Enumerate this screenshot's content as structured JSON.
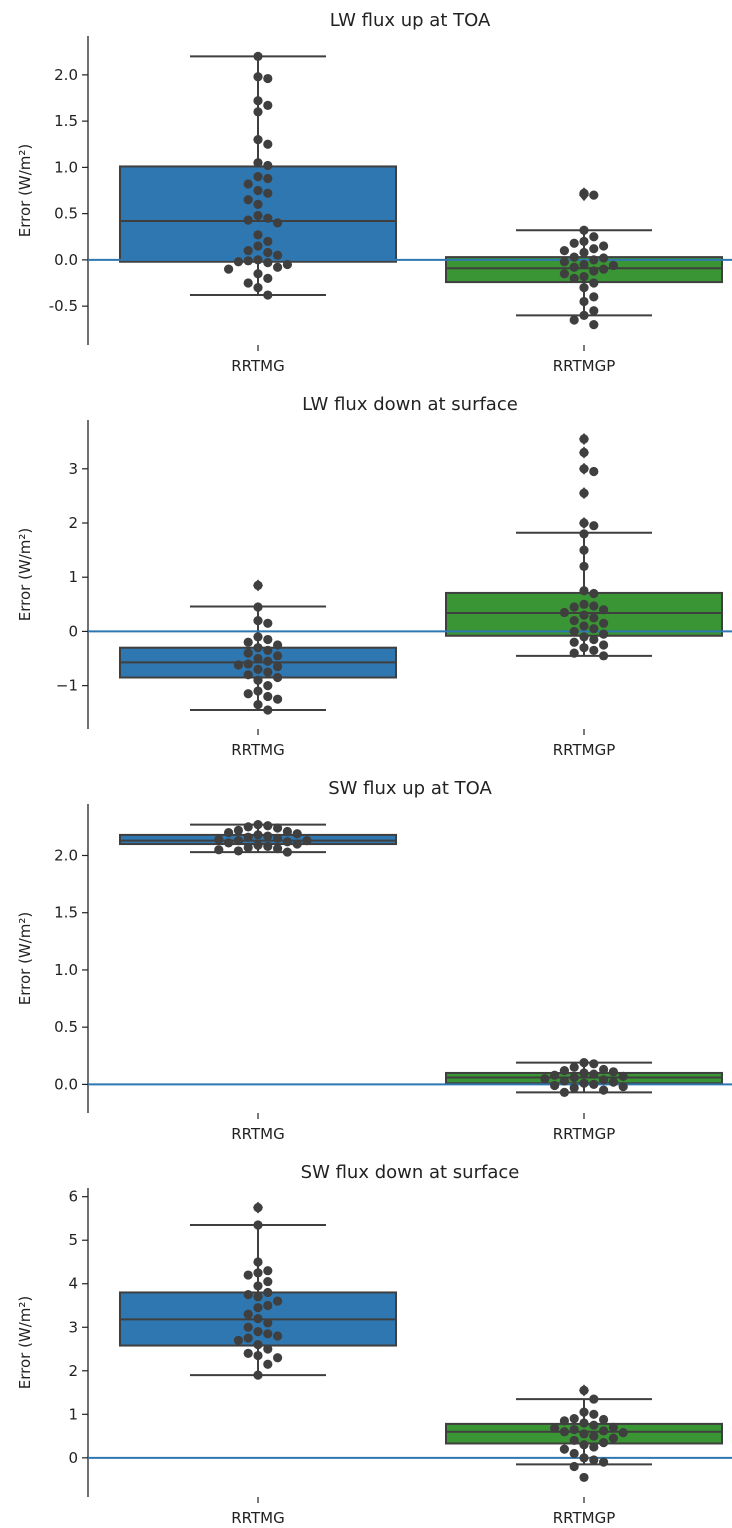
{
  "chart_data": [
    {
      "type": "box",
      "title": "LW flux up at TOA",
      "ylabel": "Error (W/m²)",
      "categories": [
        "RRTMG",
        "RRTMGP"
      ],
      "yticks": [
        "2.0",
        "1.5",
        "1.0",
        "0.5",
        "0.0",
        "-0.5"
      ],
      "ytick_values": [
        2.0,
        1.5,
        1.0,
        0.5,
        0.0,
        -0.5
      ],
      "ylim": [
        -0.92,
        2.42
      ],
      "reference_line": 0,
      "boxes": [
        {
          "name": "RRTMG",
          "color": "#2f77b0",
          "whisker_low": -0.38,
          "q1": -0.02,
          "median": 0.42,
          "q3": 1.01,
          "whisker_high": 2.2,
          "outliers": []
        },
        {
          "name": "RRTMGP",
          "color": "#3a9535",
          "whisker_low": -0.6,
          "q1": -0.24,
          "median": -0.09,
          "q3": 0.03,
          "whisker_high": 0.32,
          "outliers": [
            0.7,
            0.72
          ]
        }
      ],
      "points": [
        [
          2.2,
          1.98,
          1.96,
          1.72,
          1.67,
          1.6,
          1.3,
          1.25,
          1.05,
          1.02,
          0.9,
          0.88,
          0.82,
          0.75,
          0.72,
          0.65,
          0.6,
          0.48,
          0.45,
          0.43,
          0.4,
          0.27,
          0.2,
          0.15,
          0.1,
          0.08,
          0.05,
          0.0,
          -0.01,
          -0.02,
          -0.03,
          -0.05,
          -0.08,
          -0.1,
          -0.15,
          -0.2,
          -0.25,
          -0.3,
          -0.38
        ],
        [
          0.72,
          0.7,
          0.32,
          0.25,
          0.2,
          0.18,
          0.15,
          0.12,
          0.1,
          0.08,
          0.03,
          0.02,
          0.0,
          -0.02,
          -0.05,
          -0.06,
          -0.08,
          -0.1,
          -0.12,
          -0.15,
          -0.18,
          -0.2,
          -0.25,
          -0.3,
          -0.4,
          -0.45,
          -0.55,
          -0.6,
          -0.65,
          -0.7
        ]
      ]
    },
    {
      "type": "box",
      "title": "LW flux down at surface",
      "ylabel": "Error (W/m²)",
      "categories": [
        "RRTMG",
        "RRTMGP"
      ],
      "yticks": [
        "3",
        "2",
        "1",
        "0",
        "−1"
      ],
      "ytick_values": [
        3,
        2,
        1,
        0,
        -1
      ],
      "ylim": [
        -1.8,
        3.9
      ],
      "reference_line": 0,
      "boxes": [
        {
          "name": "RRTMG",
          "color": "#2f77b0",
          "whisker_low": -1.45,
          "q1": -0.85,
          "median": -0.57,
          "q3": -0.3,
          "whisker_high": 0.46,
          "outliers": [
            0.85
          ]
        },
        {
          "name": "RRTMGP",
          "color": "#3a9535",
          "whisker_low": -0.45,
          "q1": -0.08,
          "median": 0.34,
          "q3": 0.71,
          "whisker_high": 1.82,
          "outliers": [
            2.0,
            2.55,
            3.0,
            3.3,
            3.55
          ]
        }
      ],
      "points": [
        [
          0.85,
          0.45,
          0.2,
          0.15,
          -0.1,
          -0.15,
          -0.2,
          -0.25,
          -0.3,
          -0.35,
          -0.4,
          -0.45,
          -0.5,
          -0.55,
          -0.6,
          -0.62,
          -0.65,
          -0.7,
          -0.75,
          -0.8,
          -0.85,
          -0.9,
          -1.0,
          -1.1,
          -1.15,
          -1.2,
          -1.25,
          -1.35,
          -1.45
        ],
        [
          3.55,
          3.3,
          3.0,
          2.95,
          2.55,
          2.0,
          1.95,
          1.8,
          1.5,
          1.2,
          0.75,
          0.7,
          0.5,
          0.47,
          0.45,
          0.4,
          0.35,
          0.3,
          0.25,
          0.2,
          0.15,
          0.1,
          0.05,
          0.0,
          -0.05,
          -0.1,
          -0.15,
          -0.2,
          -0.25,
          -0.3,
          -0.35,
          -0.4,
          -0.45
        ]
      ]
    },
    {
      "type": "box",
      "title": "SW flux up at TOA",
      "ylabel": "Error (W/m²)",
      "categories": [
        "RRTMG",
        "RRTMGP"
      ],
      "yticks": [
        "2.0",
        "1.5",
        "1.0",
        "0.5",
        "0.0"
      ],
      "ytick_values": [
        2.0,
        1.5,
        1.0,
        0.5,
        0.0
      ],
      "ylim": [
        -0.25,
        2.45
      ],
      "reference_line": 0,
      "boxes": [
        {
          "name": "RRTMG",
          "color": "#2f77b0",
          "whisker_low": 2.03,
          "q1": 2.1,
          "median": 2.13,
          "q3": 2.18,
          "whisker_high": 2.27,
          "outliers": []
        },
        {
          "name": "RRTMGP",
          "color": "#3a9535",
          "whisker_low": -0.07,
          "q1": 0.01,
          "median": 0.06,
          "q3": 0.1,
          "whisker_high": 0.19,
          "outliers": []
        }
      ],
      "points": [
        [
          2.27,
          2.26,
          2.25,
          2.24,
          2.22,
          2.21,
          2.2,
          2.19,
          2.18,
          2.17,
          2.16,
          2.15,
          2.14,
          2.13,
          2.13,
          2.12,
          2.11,
          2.1,
          2.09,
          2.08,
          2.07,
          2.06,
          2.05,
          2.04,
          2.03
        ],
        [
          0.19,
          0.18,
          0.15,
          0.13,
          0.12,
          0.11,
          0.1,
          0.09,
          0.08,
          0.07,
          0.06,
          0.05,
          0.04,
          0.03,
          0.02,
          0.01,
          0.0,
          -0.01,
          -0.02,
          -0.03,
          -0.05,
          -0.07
        ]
      ]
    },
    {
      "type": "box",
      "title": "SW flux down at surface",
      "ylabel": "Error (W/m²)",
      "categories": [
        "RRTMG",
        "RRTMGP"
      ],
      "yticks": [
        "6",
        "5",
        "4",
        "3",
        "2",
        "1",
        "0"
      ],
      "ytick_values": [
        6,
        5,
        4,
        3,
        2,
        1,
        0
      ],
      "ylim": [
        -0.9,
        6.2
      ],
      "reference_line": 0,
      "boxes": [
        {
          "name": "RRTMG",
          "color": "#2f77b0",
          "whisker_low": 1.9,
          "q1": 2.58,
          "median": 3.18,
          "q3": 3.8,
          "whisker_high": 5.35,
          "outliers": [
            5.75
          ]
        },
        {
          "name": "RRTMGP",
          "color": "#3a9535",
          "whisker_low": -0.15,
          "q1": 0.33,
          "median": 0.6,
          "q3": 0.78,
          "whisker_high": 1.35,
          "outliers": [
            1.55
          ]
        }
      ],
      "points": [
        [
          5.75,
          5.35,
          4.5,
          4.3,
          4.25,
          4.2,
          4.05,
          3.95,
          3.8,
          3.75,
          3.7,
          3.6,
          3.5,
          3.45,
          3.3,
          3.2,
          3.1,
          3.0,
          2.9,
          2.85,
          2.8,
          2.75,
          2.7,
          2.6,
          2.5,
          2.4,
          2.35,
          2.3,
          2.15,
          1.9
        ],
        [
          1.55,
          1.35,
          1.05,
          1.0,
          0.9,
          0.88,
          0.85,
          0.8,
          0.75,
          0.7,
          0.68,
          0.65,
          0.62,
          0.6,
          0.58,
          0.55,
          0.5,
          0.45,
          0.4,
          0.35,
          0.3,
          0.25,
          0.2,
          0.1,
          0.0,
          -0.05,
          -0.1,
          -0.2,
          -0.45
        ]
      ]
    }
  ],
  "colors": {
    "axis": "#222222",
    "box_edge": "#3f3f3f",
    "point": "#3f3f3f",
    "zero_line": "#2f77b0"
  }
}
